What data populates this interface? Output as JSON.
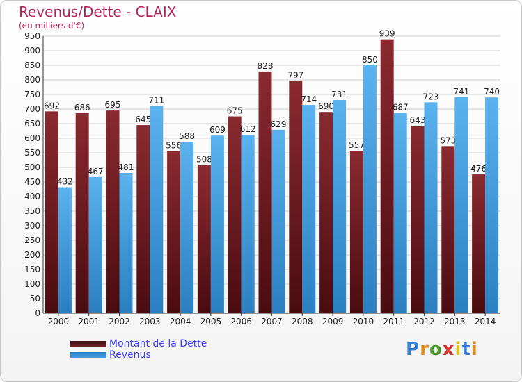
{
  "title": "Revenus/Dette - CLAIX",
  "subtitle": "(en milliers d'€)",
  "logo": {
    "text": "Proxiti",
    "letter_colors": [
      "#3a7fd6",
      "#e08a1c",
      "#4a9a2a",
      "#d6322a",
      "#e0c01a",
      "#3a7fd6",
      "#e08a1c"
    ]
  },
  "colors": {
    "dette": "#7a2228",
    "revenus": "#4aa3e6",
    "title": "#b5245a",
    "legend_text": "#4040ff"
  },
  "chart_data": {
    "type": "bar",
    "title": "Revenus/Dette - CLAIX",
    "subtitle": "(en milliers d'€)",
    "categories": [
      "2000",
      "2001",
      "2002",
      "2003",
      "2004",
      "2005",
      "2006",
      "2007",
      "2008",
      "2009",
      "2010",
      "2011",
      "2012",
      "2013",
      "2014"
    ],
    "series": [
      {
        "name": "Montant de la Dette",
        "values": [
          692,
          686,
          695,
          645,
          556,
          508,
          675,
          828,
          797,
          690,
          557,
          939,
          643,
          573,
          476
        ]
      },
      {
        "name": "Revenus",
        "values": [
          432,
          467,
          481,
          711,
          588,
          609,
          612,
          629,
          714,
          731,
          850,
          687,
          723,
          741,
          740
        ]
      }
    ],
    "ylim": [
      0,
      950
    ],
    "ytick_step": 50,
    "xlabel": "",
    "ylabel": "",
    "grid": true,
    "legend_position": "bottom-left"
  }
}
